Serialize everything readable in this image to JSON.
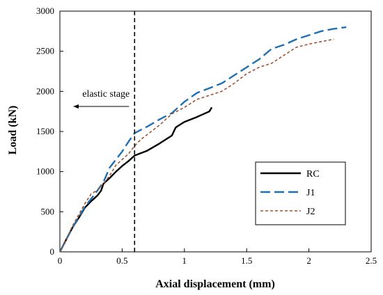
{
  "chart_data": {
    "type": "line",
    "xlabel": "Axial displacement (mm)",
    "ylabel": "Load (kN)",
    "xlim": [
      0,
      2.5
    ],
    "ylim": [
      0,
      3000
    ],
    "x_ticks": [
      "0",
      "0.5",
      "1",
      "1.5",
      "2",
      "2.5"
    ],
    "y_ticks": [
      "0",
      "500",
      "1000",
      "1500",
      "2000",
      "2500",
      "3000"
    ],
    "grid": false,
    "legend_position": "lower-right",
    "annotation": {
      "text": "elastic stage",
      "vline_x": 0.6,
      "arrow": "left"
    },
    "series": [
      {
        "name": "RC",
        "color": "#000000",
        "style": "solid",
        "points": [
          [
            0,
            0
          ],
          [
            0.05,
            150
          ],
          [
            0.1,
            300
          ],
          [
            0.15,
            420
          ],
          [
            0.2,
            550
          ],
          [
            0.25,
            630
          ],
          [
            0.3,
            700
          ],
          [
            0.33,
            760
          ],
          [
            0.35,
            850
          ],
          [
            0.4,
            920
          ],
          [
            0.45,
            1000
          ],
          [
            0.5,
            1070
          ],
          [
            0.55,
            1130
          ],
          [
            0.6,
            1200
          ],
          [
            0.65,
            1230
          ],
          [
            0.7,
            1260
          ],
          [
            0.8,
            1350
          ],
          [
            0.9,
            1450
          ],
          [
            0.93,
            1550
          ],
          [
            0.96,
            1580
          ],
          [
            1.0,
            1620
          ],
          [
            1.1,
            1680
          ],
          [
            1.2,
            1750
          ],
          [
            1.22,
            1800
          ]
        ]
      },
      {
        "name": "J1",
        "color": "#1f6fb5",
        "style": "long-dash",
        "points": [
          [
            0,
            0
          ],
          [
            0.05,
            150
          ],
          [
            0.1,
            300
          ],
          [
            0.15,
            430
          ],
          [
            0.2,
            560
          ],
          [
            0.25,
            660
          ],
          [
            0.3,
            760
          ],
          [
            0.35,
            870
          ],
          [
            0.4,
            1050
          ],
          [
            0.45,
            1150
          ],
          [
            0.5,
            1250
          ],
          [
            0.55,
            1370
          ],
          [
            0.6,
            1480
          ],
          [
            0.7,
            1560
          ],
          [
            0.8,
            1650
          ],
          [
            0.9,
            1730
          ],
          [
            1.0,
            1870
          ],
          [
            1.1,
            1980
          ],
          [
            1.2,
            2040
          ],
          [
            1.3,
            2100
          ],
          [
            1.4,
            2200
          ],
          [
            1.5,
            2300
          ],
          [
            1.6,
            2400
          ],
          [
            1.7,
            2530
          ],
          [
            1.8,
            2580
          ],
          [
            1.9,
            2650
          ],
          [
            2.0,
            2700
          ],
          [
            2.1,
            2750
          ],
          [
            2.2,
            2780
          ],
          [
            2.3,
            2800
          ]
        ]
      },
      {
        "name": "J2",
        "color": "#a0522d",
        "style": "short-dash",
        "points": [
          [
            0,
            0
          ],
          [
            0.05,
            150
          ],
          [
            0.1,
            320
          ],
          [
            0.15,
            460
          ],
          [
            0.2,
            600
          ],
          [
            0.25,
            720
          ],
          [
            0.3,
            770
          ],
          [
            0.35,
            850
          ],
          [
            0.4,
            950
          ],
          [
            0.45,
            1080
          ],
          [
            0.5,
            1150
          ],
          [
            0.55,
            1220
          ],
          [
            0.6,
            1320
          ],
          [
            0.65,
            1400
          ],
          [
            0.7,
            1460
          ],
          [
            0.8,
            1580
          ],
          [
            0.9,
            1720
          ],
          [
            1.0,
            1800
          ],
          [
            1.1,
            1900
          ],
          [
            1.2,
            1950
          ],
          [
            1.3,
            2000
          ],
          [
            1.4,
            2100
          ],
          [
            1.5,
            2220
          ],
          [
            1.6,
            2300
          ],
          [
            1.7,
            2350
          ],
          [
            1.8,
            2450
          ],
          [
            1.9,
            2550
          ],
          [
            2.0,
            2590
          ],
          [
            2.1,
            2620
          ],
          [
            2.2,
            2650
          ]
        ]
      }
    ]
  }
}
